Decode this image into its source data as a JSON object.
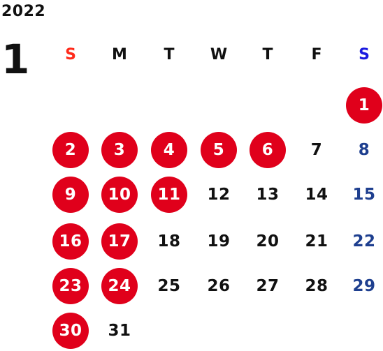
{
  "calendar": {
    "year": "2022",
    "month": "1",
    "weekdays": [
      {
        "label": "S",
        "color": "#ff2a1a"
      },
      {
        "label": "M",
        "color": "#111111"
      },
      {
        "label": "T",
        "color": "#111111"
      },
      {
        "label": "W",
        "color": "#111111"
      },
      {
        "label": "T",
        "color": "#111111"
      },
      {
        "label": "F",
        "color": "#111111"
      },
      {
        "label": "S",
        "color": "#1a1ae0"
      }
    ],
    "weeks": [
      [
        null,
        null,
        null,
        null,
        null,
        null,
        {
          "day": "1",
          "highlight": true
        }
      ],
      [
        {
          "day": "2",
          "highlight": true
        },
        {
          "day": "3",
          "highlight": true
        },
        {
          "day": "4",
          "highlight": true
        },
        {
          "day": "5",
          "highlight": true
        },
        {
          "day": "6",
          "highlight": true
        },
        {
          "day": "7",
          "highlight": false
        },
        {
          "day": "8",
          "highlight": false
        }
      ],
      [
        {
          "day": "9",
          "highlight": true
        },
        {
          "day": "10",
          "highlight": true
        },
        {
          "day": "11",
          "highlight": true
        },
        {
          "day": "12",
          "highlight": false
        },
        {
          "day": "13",
          "highlight": false
        },
        {
          "day": "14",
          "highlight": false
        },
        {
          "day": "15",
          "highlight": false
        }
      ],
      [
        {
          "day": "16",
          "highlight": true
        },
        {
          "day": "17",
          "highlight": true
        },
        {
          "day": "18",
          "highlight": false
        },
        {
          "day": "19",
          "highlight": false
        },
        {
          "day": "20",
          "highlight": false
        },
        {
          "day": "21",
          "highlight": false
        },
        {
          "day": "22",
          "highlight": false
        }
      ],
      [
        {
          "day": "23",
          "highlight": true
        },
        {
          "day": "24",
          "highlight": true
        },
        {
          "day": "25",
          "highlight": false
        },
        {
          "day": "26",
          "highlight": false
        },
        {
          "day": "27",
          "highlight": false
        },
        {
          "day": "28",
          "highlight": false
        },
        {
          "day": "29",
          "highlight": false
        }
      ],
      [
        {
          "day": "30",
          "highlight": true
        },
        {
          "day": "31",
          "highlight": false
        },
        null,
        null,
        null,
        null,
        null
      ]
    ],
    "colors": {
      "highlight_bg": "#e0001b",
      "highlight_text": "#ffffff",
      "saturday_text": "#1e3f8f",
      "default_text": "#111111"
    }
  }
}
